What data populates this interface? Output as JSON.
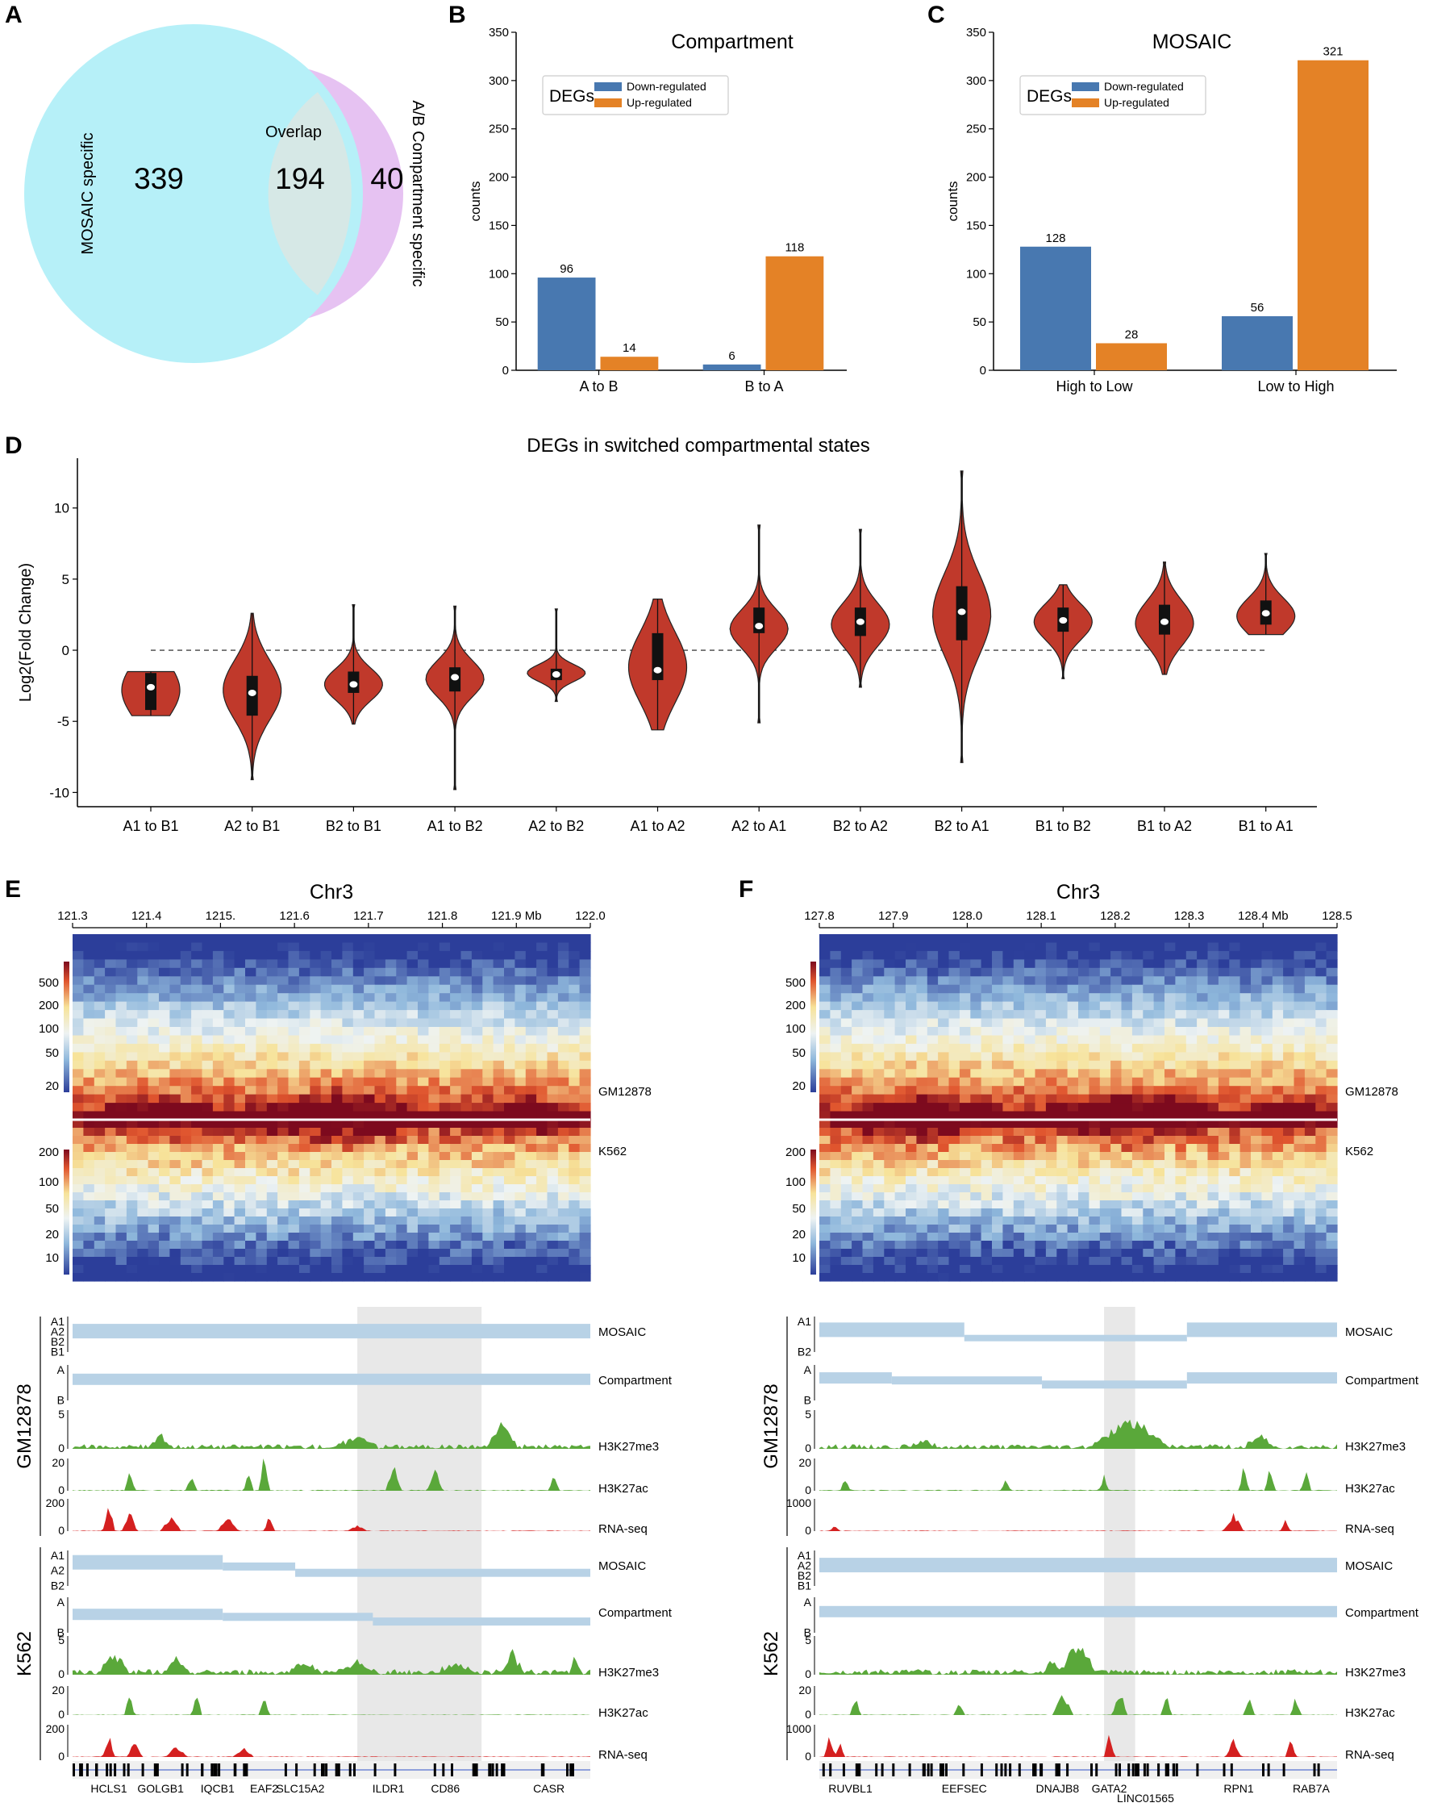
{
  "panel_labels": [
    "A",
    "B",
    "C",
    "D",
    "E",
    "F"
  ],
  "colors": {
    "down": "#4878b0",
    "up": "#e48226",
    "violin": "#c0392b",
    "cyan": "#b6f0f8",
    "pink": "#e6c2f2",
    "overlap": "#d6e8e6",
    "bar_light": "#b8d2e6",
    "green": "#5aa83a",
    "red": "#d42020",
    "shade": "#e0e0e0"
  },
  "chart_data": [
    {
      "type": "venn",
      "panel": "A",
      "sets": [
        {
          "name": "MOSAIC specific",
          "count": 339
        },
        {
          "name": "Overlap",
          "count": 194
        },
        {
          "name": "A/B Compartment specific",
          "count": 40
        }
      ]
    },
    {
      "type": "bar",
      "panel": "B",
      "title": "Compartment",
      "ylabel": "counts",
      "ylim": [
        0,
        350
      ],
      "yticks": [
        0,
        50,
        100,
        150,
        200,
        250,
        300,
        350
      ],
      "legend_title": "DEGs",
      "categories": [
        "A to B",
        "B to A"
      ],
      "series": [
        {
          "name": "Down-regulated",
          "values": [
            96,
            6
          ]
        },
        {
          "name": "Up-regulated",
          "values": [
            14,
            118
          ]
        }
      ]
    },
    {
      "type": "bar",
      "panel": "C",
      "title": "MOSAIC",
      "ylabel": "counts",
      "ylim": [
        0,
        350
      ],
      "yticks": [
        0,
        50,
        100,
        150,
        200,
        250,
        300,
        350
      ],
      "legend_title": "DEGs",
      "categories": [
        "High to Low",
        "Low to High"
      ],
      "series": [
        {
          "name": "Down-regulated",
          "values": [
            128,
            56
          ]
        },
        {
          "name": "Up-regulated",
          "values": [
            28,
            321
          ]
        }
      ]
    },
    {
      "type": "violin",
      "panel": "D",
      "title": "DEGs in switched compartmental states",
      "ylabel": "Log2(Fold Change)",
      "ylim": [
        -11,
        13.5
      ],
      "yticks": [
        -10,
        -5,
        0,
        5,
        10
      ],
      "categories": [
        "A1 to B1",
        "A2 to B1",
        "B2 to B1",
        "A1 to B2",
        "A2 to B2",
        "A1 to A2",
        "A2 to A1",
        "B2 to A2",
        "B2 to A1",
        "B1 to B2",
        "B1 to A2",
        "B1 to A1"
      ],
      "min": [
        -4.6,
        -9.1,
        -5.2,
        -9.8,
        -3.6,
        -5.6,
        -5.1,
        -2.6,
        -7.9,
        -2.0,
        -1.7,
        1.1
      ],
      "q1": [
        -4.2,
        -4.6,
        -3.0,
        -2.9,
        -2.1,
        -2.1,
        1.2,
        1.0,
        0.7,
        1.3,
        1.1,
        1.8
      ],
      "median": [
        -2.6,
        -3.0,
        -2.4,
        -1.9,
        -1.7,
        -1.4,
        1.7,
        2.0,
        2.7,
        2.1,
        2.0,
        2.6
      ],
      "q3": [
        -1.6,
        -1.8,
        -1.5,
        -1.2,
        -1.3,
        1.2,
        3.0,
        3.0,
        4.5,
        3.0,
        3.2,
        3.5
      ],
      "max": [
        -1.5,
        2.6,
        3.2,
        3.1,
        2.9,
        3.6,
        8.8,
        8.5,
        12.6,
        4.6,
        6.2,
        6.8
      ],
      "peak": [
        -2.8,
        -2.8,
        -2.4,
        -2.0,
        -1.6,
        -1.2,
        1.5,
        1.8,
        2.5,
        2.0,
        1.9,
        2.4
      ]
    }
  ],
  "panel_e": {
    "chrom": "Chr3",
    "ticks": [
      "121.3",
      "121.4",
      "1215.",
      "121.6",
      "121.7",
      "121.8",
      "121.9 Mb",
      "122.0"
    ],
    "scale_top": [
      "500",
      "200",
      "100",
      "50",
      "20"
    ],
    "scale_bottom": [
      "200",
      "100",
      "50",
      "20",
      "10"
    ],
    "cell_top": "GM12878",
    "cell_bottom": "K562",
    "tracks": [
      "MOSAIC",
      "Compartment",
      "H3K27me3",
      "H3K27ac",
      "RNA-seq"
    ],
    "mosaic_axis": [
      "A1",
      "A2",
      "B2",
      "B1"
    ],
    "mosaic_axis_k562": [
      "A1",
      "A2",
      "B2"
    ],
    "comp_axis": [
      "A",
      "B"
    ],
    "h3k27me3_ticks": [
      "5",
      "0"
    ],
    "h3k27ac_ticks": [
      "20",
      "0"
    ],
    "rna_ticks": [
      "200",
      "0"
    ],
    "genes": [
      "HCLS1",
      "GOLGB1",
      "IQCB1",
      "EAF2",
      "SLC15A2",
      "ILDR1",
      "CD86",
      "CASR"
    ]
  },
  "panel_f": {
    "chrom": "Chr3",
    "ticks": [
      "127.8",
      "127.9",
      "128.0",
      "128.1",
      "128.2",
      "128.3",
      "128.4 Mb",
      "128.5"
    ],
    "scale_top": [
      "500",
      "200",
      "100",
      "50",
      "20"
    ],
    "scale_bottom": [
      "200",
      "100",
      "50",
      "20",
      "10"
    ],
    "cell_top": "GM12878",
    "cell_bottom": "K562",
    "tracks": [
      "MOSAIC",
      "Compartment",
      "H3K27me3",
      "H3K27ac",
      "RNA-seq"
    ],
    "mosaic_axis": [
      "A1",
      "B2"
    ],
    "mosaic_axis_k562": [
      "A1",
      "A2",
      "B2",
      "B1"
    ],
    "comp_axis": [
      "A",
      "B"
    ],
    "h3k27me3_ticks": [
      "5",
      "0"
    ],
    "h3k27ac_ticks": [
      "20",
      "0"
    ],
    "rna_ticks": [
      "1000",
      "0"
    ],
    "genes": [
      "RUVBL1",
      "EEFSEC",
      "DNAJB8",
      "GATA2",
      "LINC01565",
      "RPN1",
      "RAB7A"
    ]
  }
}
